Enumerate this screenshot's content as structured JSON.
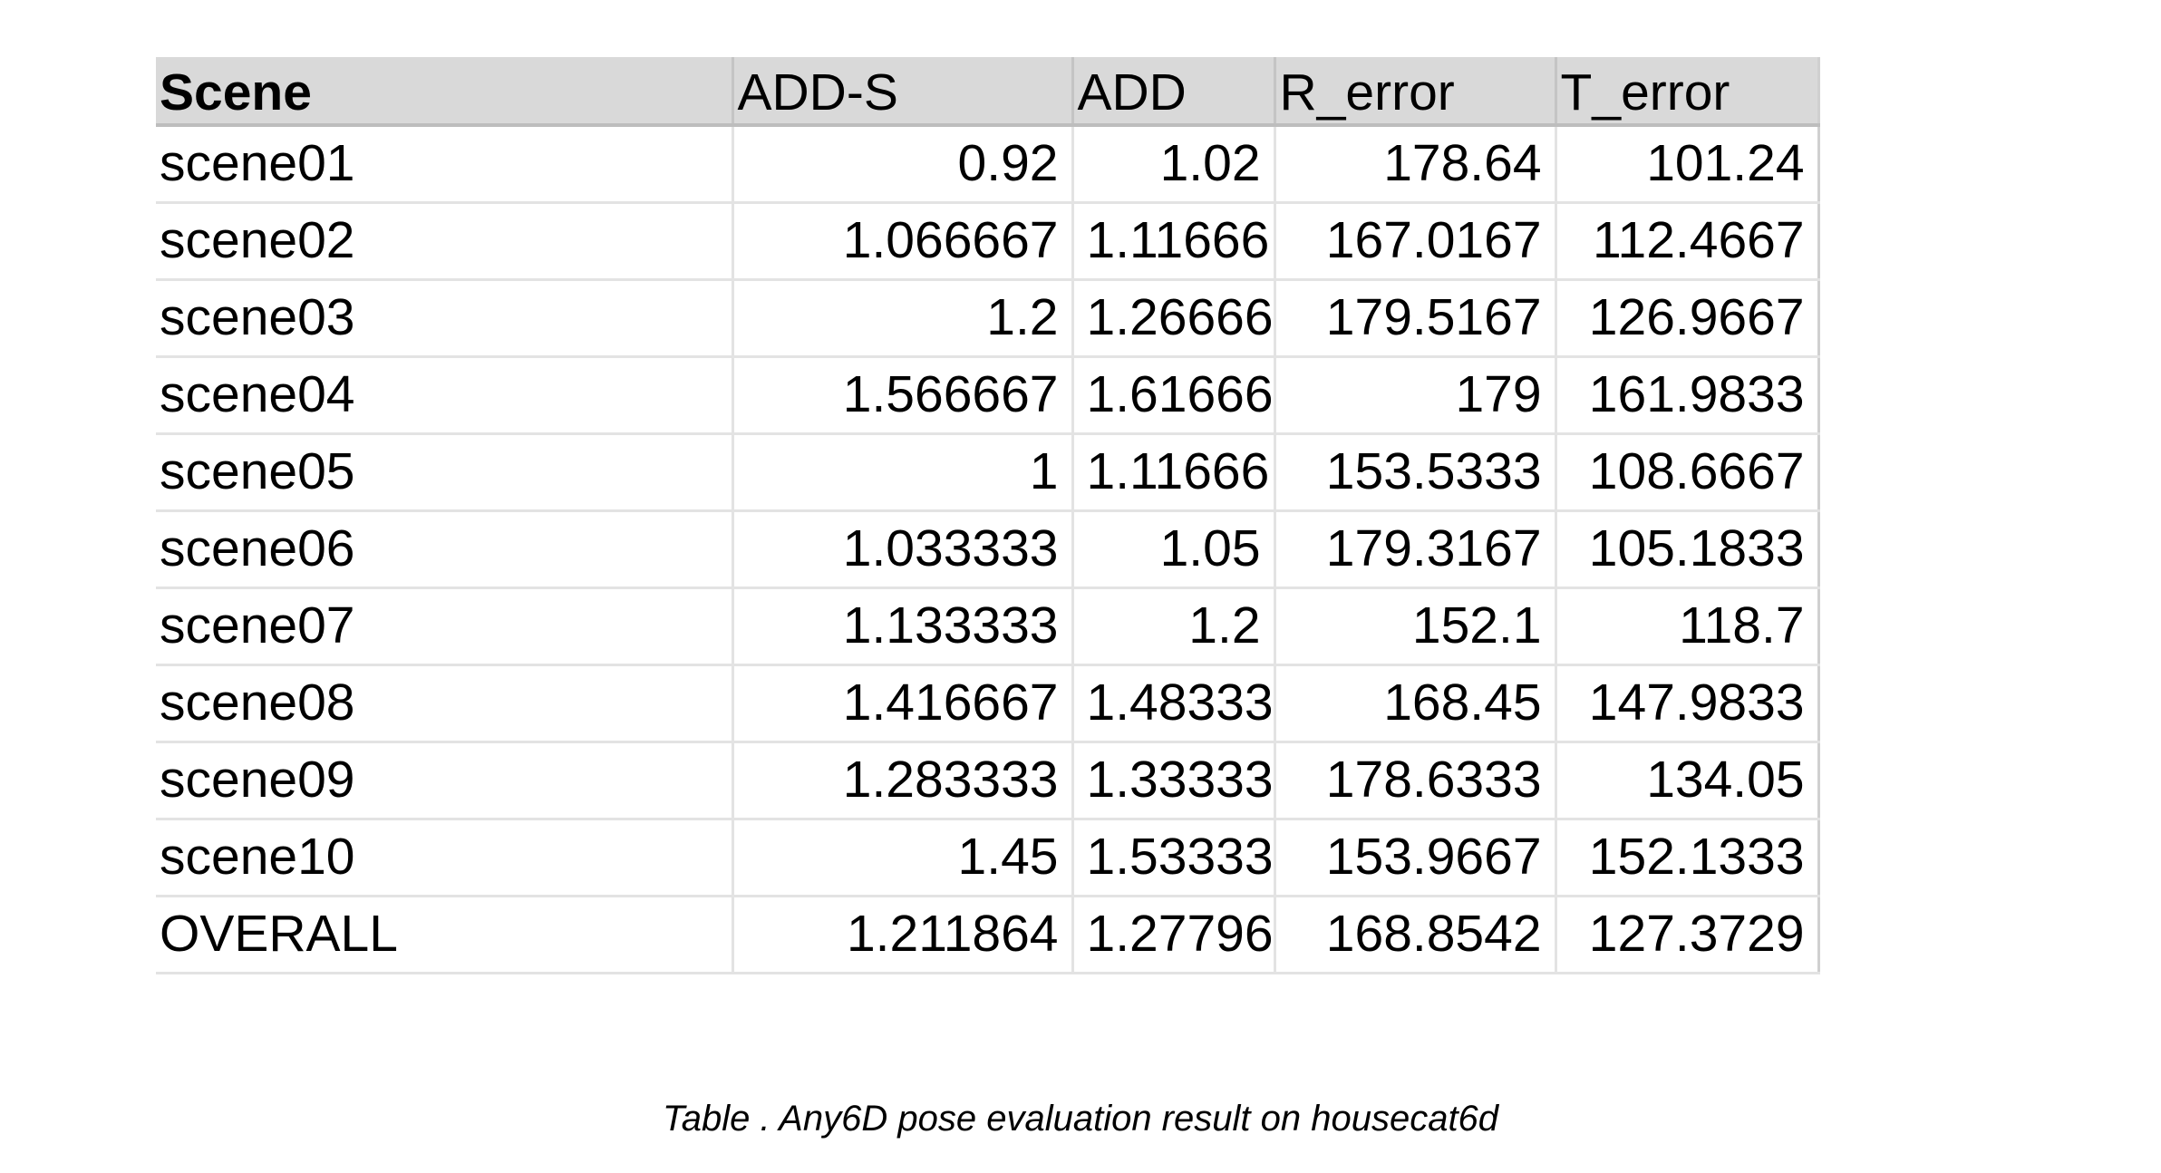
{
  "table": {
    "headers": [
      "Scene",
      "ADD-S",
      "ADD",
      "R_error",
      "T_error"
    ],
    "rows": [
      [
        "scene01",
        "0.92",
        "1.02",
        "178.64",
        "101.24"
      ],
      [
        "scene02",
        "1.066667",
        "1.11666",
        "167.0167",
        "112.4667"
      ],
      [
        "scene03",
        "1.2",
        "1.26666",
        "179.5167",
        "126.9667"
      ],
      [
        "scene04",
        "1.566667",
        "1.61666",
        "179",
        "161.9833"
      ],
      [
        "scene05",
        "1",
        "1.11666",
        "153.5333",
        "108.6667"
      ],
      [
        "scene06",
        "1.033333",
        "1.05",
        "179.3167",
        "105.1833"
      ],
      [
        "scene07",
        "1.133333",
        "1.2",
        "152.1",
        "118.7"
      ],
      [
        "scene08",
        "1.416667",
        "1.48333",
        "168.45",
        "147.9833"
      ],
      [
        "scene09",
        "1.283333",
        "1.33333",
        "178.6333",
        "134.05"
      ],
      [
        "scene10",
        "1.45",
        "1.53333",
        "153.9667",
        "152.1333"
      ],
      [
        "OVERALL",
        "1.211864",
        "1.27796",
        "168.8542",
        "127.3729"
      ]
    ]
  },
  "caption": "Table . Any6D pose evaluation result on housecat6d"
}
